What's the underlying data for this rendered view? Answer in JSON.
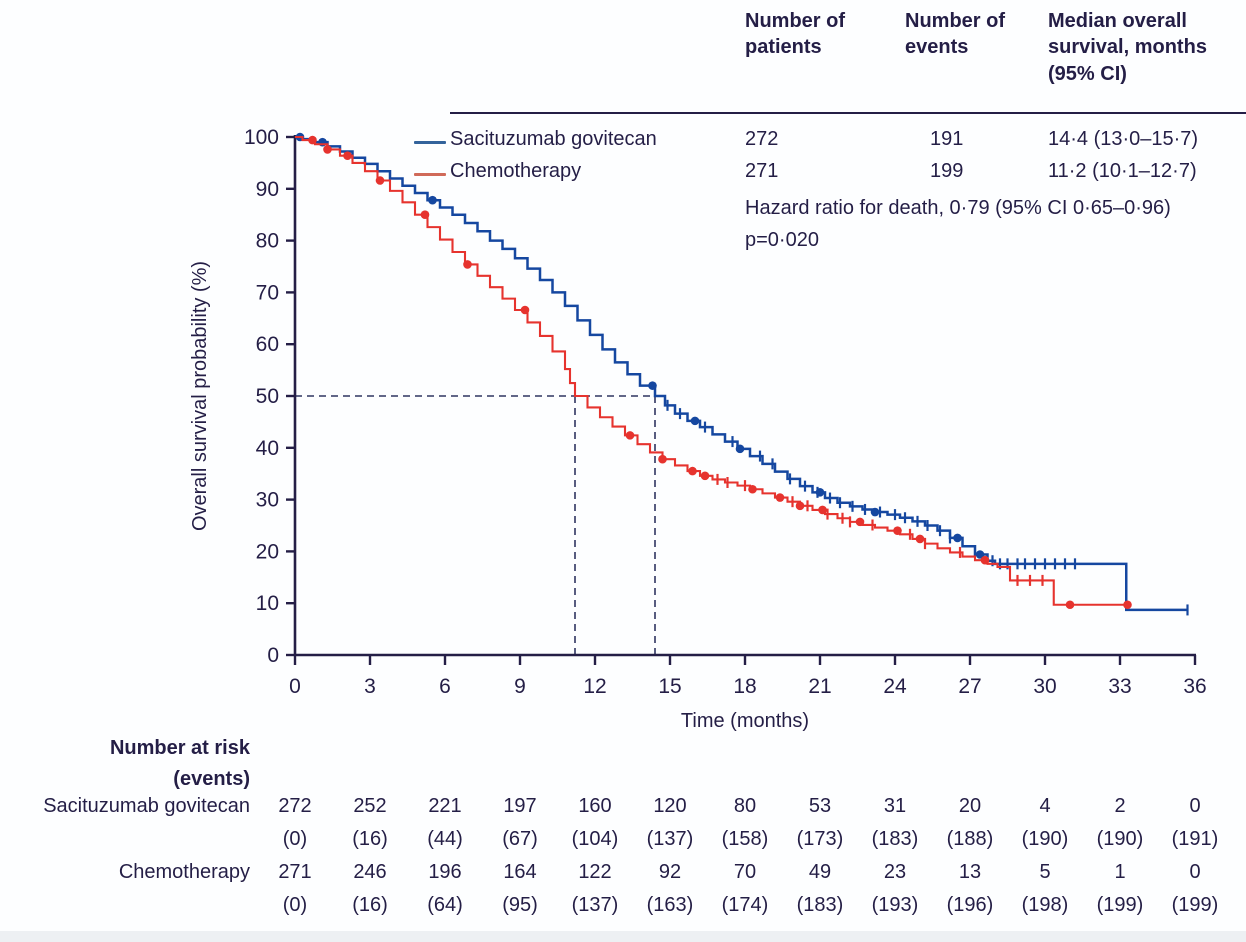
{
  "colors": {
    "ink": "#241e46",
    "sg_curve": "#1547a0",
    "chemo_curve": "#e6332e",
    "sg_legend": "#33639b",
    "chemo_legend": "#d06a59",
    "guide": "#2f3560"
  },
  "summary": {
    "columns": {
      "patients": "Number of patients",
      "events": "Number of events",
      "median": "Median overall survival, months (95% CI)"
    },
    "rows": [
      {
        "label": "Sacituzumab govitecan",
        "n_patients": "272",
        "n_events": "191",
        "median_os": "14·4 (13·0–15·7)"
      },
      {
        "label": "Chemotherapy",
        "n_patients": "271",
        "n_events": "199",
        "median_os": "11·2 (10·1–12·7)"
      }
    ],
    "hazard": "Hazard ratio for death, 0·79 (95% CI 0·65–0·96)",
    "p_value": "p=0·020"
  },
  "chart_data": {
    "type": "line",
    "subtype": "kaplan-meier-step",
    "title": "",
    "xlabel": "Time (months)",
    "ylabel": "Overall survival probability (%)",
    "xlim": [
      0,
      36
    ],
    "ylim": [
      0,
      100
    ],
    "xticks": [
      0,
      3,
      6,
      9,
      12,
      15,
      18,
      21,
      24,
      27,
      30,
      33,
      36
    ],
    "yticks": [
      0,
      10,
      20,
      30,
      40,
      50,
      60,
      70,
      80,
      90,
      100
    ],
    "grid": false,
    "legend_position": "top-left-inside",
    "median_guides": {
      "y": 50,
      "x_values": [
        11.2,
        14.4
      ]
    },
    "series": [
      {
        "name": "Sacituzumab govitecan",
        "median_months": 14.4,
        "points": [
          [
            0,
            100
          ],
          [
            0.3,
            99.6
          ],
          [
            0.8,
            99
          ],
          [
            1.3,
            98.2
          ],
          [
            1.8,
            97.2
          ],
          [
            2.3,
            96
          ],
          [
            2.8,
            94.8
          ],
          [
            3.3,
            93.4
          ],
          [
            3.8,
            92
          ],
          [
            4.3,
            90.6
          ],
          [
            4.8,
            89.2
          ],
          [
            5.3,
            87.8
          ],
          [
            5.8,
            86.4
          ],
          [
            6.3,
            85
          ],
          [
            6.8,
            83.4
          ],
          [
            7.3,
            81.8
          ],
          [
            7.8,
            80
          ],
          [
            8.3,
            78.4
          ],
          [
            8.8,
            76.6
          ],
          [
            9.3,
            74.6
          ],
          [
            9.8,
            72.4
          ],
          [
            10.3,
            70
          ],
          [
            10.8,
            67.4
          ],
          [
            11.3,
            64.6
          ],
          [
            11.8,
            61.8
          ],
          [
            12.3,
            59
          ],
          [
            12.8,
            56.5
          ],
          [
            13.3,
            54.2
          ],
          [
            13.8,
            52
          ],
          [
            14.4,
            50
          ],
          [
            14.8,
            48.2
          ],
          [
            15.2,
            46.6
          ],
          [
            15.7,
            45.2
          ],
          [
            16.2,
            44
          ],
          [
            16.7,
            42.6
          ],
          [
            17.2,
            41.2
          ],
          [
            17.7,
            39.8
          ],
          [
            18.2,
            38.4
          ],
          [
            18.7,
            36.9
          ],
          [
            19.2,
            35.4
          ],
          [
            19.7,
            34
          ],
          [
            20.2,
            32.6
          ],
          [
            20.7,
            31.4
          ],
          [
            21.2,
            30.3
          ],
          [
            21.7,
            29.4
          ],
          [
            22.2,
            28.7
          ],
          [
            22.7,
            28.1
          ],
          [
            23.2,
            27.6
          ],
          [
            23.7,
            27.1
          ],
          [
            24.2,
            26.5
          ],
          [
            24.7,
            25.8
          ],
          [
            25.2,
            25
          ],
          [
            25.7,
            24
          ],
          [
            26.2,
            22.6
          ],
          [
            26.7,
            21
          ],
          [
            27.2,
            19.4
          ],
          [
            27.7,
            18.2
          ],
          [
            28,
            17.6
          ],
          [
            33.2,
            17.6
          ],
          [
            33.25,
            8.7
          ],
          [
            35.7,
            8.7
          ]
        ],
        "censor_times": [
          14.9,
          15.4,
          16.4,
          17.5,
          18.6,
          19.1,
          19.8,
          20.4,
          20.9,
          21.4,
          21.8,
          22.3,
          22.8,
          23.4,
          24.0,
          24.4,
          24.9,
          25.3,
          25.8,
          26.2,
          27.9,
          28.2,
          28.5,
          28.9,
          29.2,
          29.6,
          30.0,
          30.4,
          30.8,
          31.2,
          35.7
        ],
        "event_dot_times": [
          0.2,
          1.1,
          5.5,
          14.3,
          16.0,
          17.8,
          21.0,
          23.2,
          26.5,
          27.4
        ]
      },
      {
        "name": "Chemotherapy",
        "median_months": 11.2,
        "points": [
          [
            0,
            100
          ],
          [
            0.3,
            99.4
          ],
          [
            0.8,
            98.6
          ],
          [
            1.3,
            97.6
          ],
          [
            1.8,
            96.4
          ],
          [
            2.3,
            95
          ],
          [
            2.8,
            93.4
          ],
          [
            3.3,
            91.6
          ],
          [
            3.8,
            89.6
          ],
          [
            4.3,
            87.4
          ],
          [
            4.8,
            85
          ],
          [
            5.3,
            82.6
          ],
          [
            5.8,
            80.2
          ],
          [
            6.3,
            77.8
          ],
          [
            6.8,
            75.4
          ],
          [
            7.3,
            73.2
          ],
          [
            7.8,
            71
          ],
          [
            8.3,
            68.8
          ],
          [
            8.8,
            66.6
          ],
          [
            9.3,
            64.2
          ],
          [
            9.8,
            61.6
          ],
          [
            10.3,
            58.6
          ],
          [
            10.8,
            55.2
          ],
          [
            11.0,
            52.5
          ],
          [
            11.2,
            50
          ],
          [
            11.7,
            47.8
          ],
          [
            12.2,
            45.9
          ],
          [
            12.7,
            44.1
          ],
          [
            13.2,
            42.4
          ],
          [
            13.7,
            40.7
          ],
          [
            14.2,
            39.1
          ],
          [
            14.7,
            37.8
          ],
          [
            15.2,
            36.6
          ],
          [
            15.7,
            35.5
          ],
          [
            16.2,
            34.6
          ],
          [
            16.7,
            33.9
          ],
          [
            17.2,
            33.3
          ],
          [
            17.7,
            32.7
          ],
          [
            18.2,
            32
          ],
          [
            18.7,
            31.2
          ],
          [
            19.2,
            30.4
          ],
          [
            19.7,
            29.6
          ],
          [
            20.2,
            28.8
          ],
          [
            20.7,
            28
          ],
          [
            21.2,
            27.2
          ],
          [
            21.7,
            26.4
          ],
          [
            22.2,
            25.7
          ],
          [
            22.7,
            25.1
          ],
          [
            23.2,
            24.6
          ],
          [
            23.7,
            24
          ],
          [
            24.2,
            23.3
          ],
          [
            24.7,
            22.4
          ],
          [
            25.2,
            21.5
          ],
          [
            25.7,
            20.6
          ],
          [
            26.2,
            19.8
          ],
          [
            26.7,
            19
          ],
          [
            27.2,
            18.3
          ],
          [
            27.7,
            17.6
          ],
          [
            28.1,
            17
          ],
          [
            28.6,
            14.4
          ],
          [
            30.3,
            14.4
          ],
          [
            30.35,
            9.7
          ],
          [
            33.3,
            9.7
          ]
        ],
        "censor_times": [
          16.9,
          17.3,
          18.0,
          19.9,
          20.5,
          21.3,
          21.9,
          22.2,
          23.1,
          24.6,
          25.2,
          26.6,
          28.9,
          29.4,
          29.9
        ],
        "event_dot_times": [
          0.7,
          1.3,
          2.1,
          3.4,
          5.2,
          6.9,
          9.2,
          13.4,
          14.7,
          15.9,
          16.4,
          18.3,
          19.4,
          20.2,
          21.1,
          22.6,
          24.1,
          25.0,
          27.6,
          31.0,
          33.3
        ]
      }
    ]
  },
  "risk_table": {
    "header_line1": "Number at risk",
    "header_line2": "(events)",
    "time_points": [
      0,
      3,
      6,
      9,
      12,
      15,
      18,
      21,
      24,
      27,
      30,
      33,
      36
    ],
    "rows": [
      {
        "label": "Sacituzumab govitecan",
        "at_risk": [
          "272",
          "252",
          "221",
          "197",
          "160",
          "120",
          "80",
          "53",
          "31",
          "20",
          "4",
          "2",
          "0"
        ],
        "events": [
          "(0)",
          "(16)",
          "(44)",
          "(67)",
          "(104)",
          "(137)",
          "(158)",
          "(173)",
          "(183)",
          "(188)",
          "(190)",
          "(190)",
          "(191)"
        ]
      },
      {
        "label": "Chemotherapy",
        "at_risk": [
          "271",
          "246",
          "196",
          "164",
          "122",
          "92",
          "70",
          "49",
          "23",
          "13",
          "5",
          "1",
          "0"
        ],
        "events": [
          "(0)",
          "(16)",
          "(64)",
          "(95)",
          "(137)",
          "(163)",
          "(174)",
          "(183)",
          "(193)",
          "(196)",
          "(198)",
          "(199)",
          "(199)"
        ]
      }
    ]
  }
}
